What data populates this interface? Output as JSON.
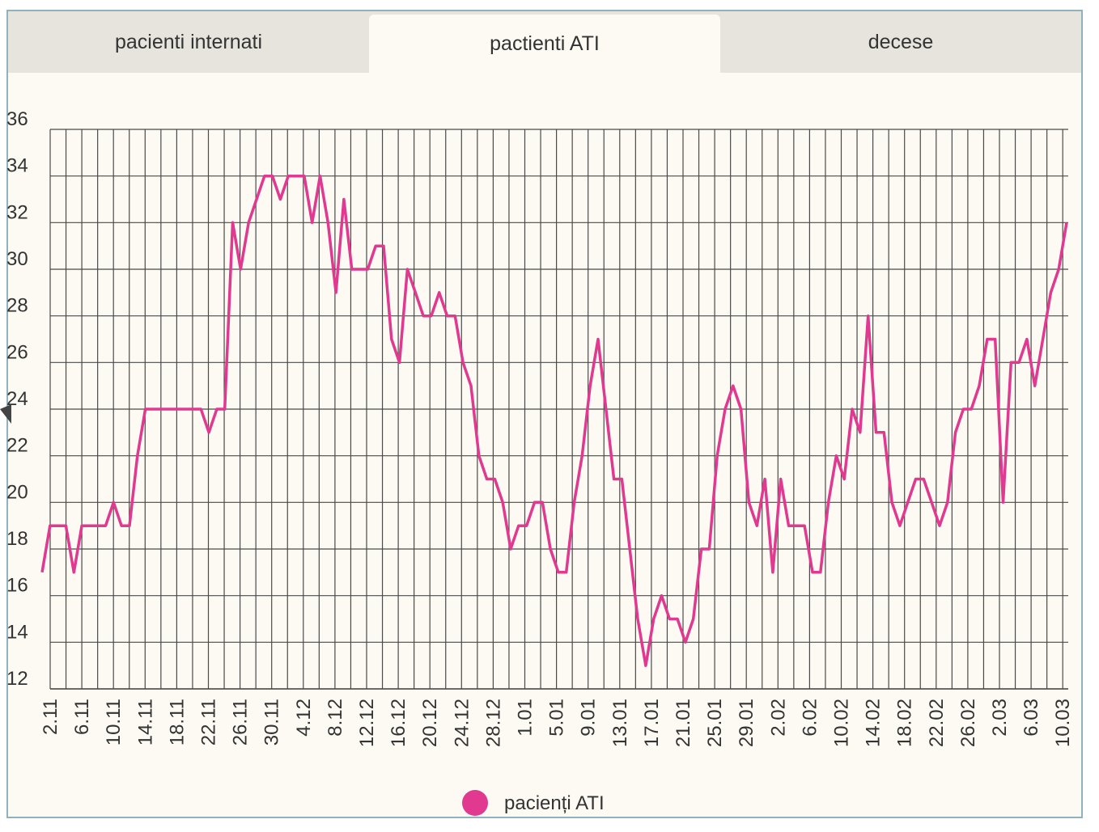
{
  "tabs": [
    {
      "label": "pacienti internati",
      "active": false
    },
    {
      "label": "pactienti ATI",
      "active": true
    },
    {
      "label": "decese",
      "active": false
    }
  ],
  "colors": {
    "line": "#e0398f",
    "grid": "#4a4a4a",
    "background": "#fcfaf2",
    "tab_bg": "#e7e4dd",
    "frame": "#8fb3be"
  },
  "chart_data": {
    "type": "line",
    "xlabel": "",
    "ylabel": "",
    "ylim": [
      12,
      36
    ],
    "yticks": [
      12,
      14,
      16,
      18,
      20,
      22,
      24,
      26,
      28,
      30,
      32,
      34,
      36
    ],
    "grid": true,
    "legend_position": "bottom-center",
    "x_tick_labels": [
      "2.11",
      "6.11",
      "10.11",
      "14.11",
      "18.11",
      "22.11",
      "26.11",
      "30.11",
      "4.12",
      "8.12",
      "12.12",
      "16.12",
      "20.12",
      "24.12",
      "28.12",
      "1.01",
      "5.01",
      "9.01",
      "13.01",
      "17.01",
      "21.01",
      "25.01",
      "29.01",
      "2.02",
      "6.02",
      "10.02",
      "14.02",
      "18.02",
      "22.02",
      "26.02",
      "2.03",
      "6.03",
      "10.03"
    ],
    "series": [
      {
        "name": "pacienți ATI",
        "color": "#e0398f",
        "values": [
          17,
          19,
          19,
          19,
          17,
          19,
          19,
          19,
          19,
          20,
          19,
          19,
          22,
          24,
          24,
          24,
          24,
          24,
          24,
          24,
          24,
          23,
          24,
          24,
          32,
          30,
          32,
          33,
          34,
          34,
          33,
          34,
          34,
          34,
          32,
          34,
          32,
          29,
          33,
          30,
          30,
          30,
          31,
          31,
          27,
          26,
          30,
          29,
          28,
          28,
          29,
          28,
          28,
          26,
          25,
          22,
          21,
          21,
          20,
          18,
          19,
          19,
          20,
          20,
          18,
          17,
          17,
          20,
          22,
          25,
          27,
          24,
          21,
          21,
          18,
          15,
          13,
          15,
          16,
          15,
          15,
          14,
          15,
          18,
          18,
          22,
          24,
          25,
          24,
          20,
          19,
          21,
          17,
          21,
          19,
          19,
          19,
          17,
          17,
          20,
          22,
          21,
          24,
          23,
          28,
          23,
          23,
          20,
          19,
          20,
          21,
          21,
          20,
          19,
          20,
          23,
          24,
          24,
          25,
          27,
          27,
          20,
          26,
          26,
          27,
          25,
          27,
          29,
          30,
          32
        ]
      }
    ]
  }
}
